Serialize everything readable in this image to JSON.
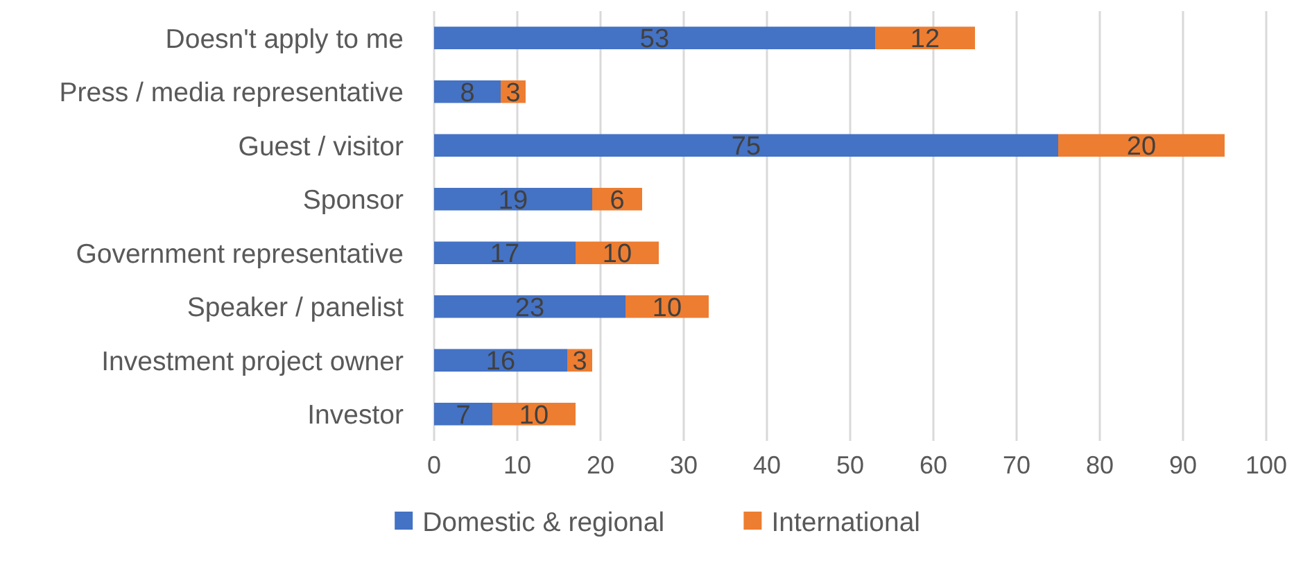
{
  "chart_data": {
    "type": "bar",
    "orientation": "horizontal",
    "stacked": true,
    "categories": [
      "Doesn't apply to me",
      "Press / media representative",
      "Guest / visitor",
      "Sponsor",
      "Government representative",
      "Speaker / panelist",
      "Investment project owner",
      "Investor"
    ],
    "series": [
      {
        "name": "Domestic & regional",
        "color": "#4472c4",
        "values": [
          53,
          8,
          75,
          19,
          17,
          23,
          16,
          7
        ]
      },
      {
        "name": "International",
        "color": "#ed7d31",
        "values": [
          12,
          3,
          20,
          6,
          10,
          10,
          3,
          10
        ]
      }
    ],
    "xlim": [
      0,
      100
    ],
    "xticks": [
      0,
      10,
      20,
      30,
      40,
      50,
      60,
      70,
      80,
      90,
      100
    ],
    "grid": "x",
    "legend": "bottom",
    "data_labels": true
  }
}
